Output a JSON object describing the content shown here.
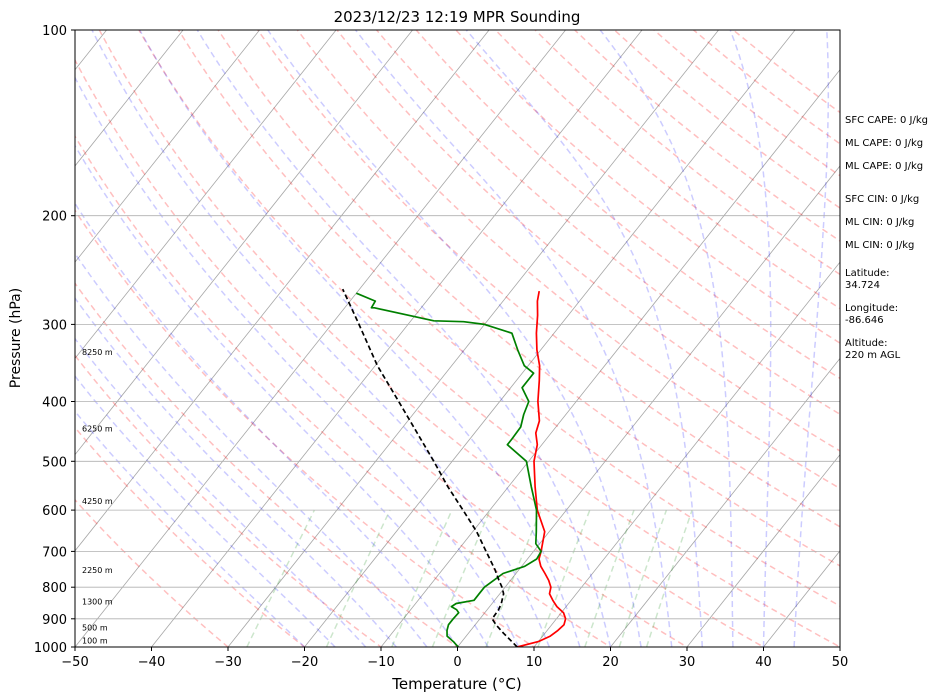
{
  "chart_data": {
    "type": "line",
    "title": "2023/12/23 12:19 MPR Sounding",
    "xlabel": "Temperature (°C)",
    "ylabel": "Pressure (hPa)",
    "xlim": [
      -50,
      50
    ],
    "ylim": [
      1000,
      100
    ],
    "y_scale": "log",
    "x_ticks": [
      "−50",
      "−40",
      "−30",
      "−20",
      "−10",
      "0",
      "10",
      "20",
      "30",
      "40",
      "50"
    ],
    "y_ticks": [
      "100",
      "200",
      "300",
      "400",
      "500",
      "600",
      "700",
      "800",
      "900",
      "1000"
    ],
    "height_labels": [
      "8250 m",
      "6250 m",
      "4250 m",
      "2250 m",
      "1300 m",
      "500 m",
      "100 m"
    ],
    "series": [
      {
        "color": "#ff0000",
        "pressure": [
          1000,
          980,
          960,
          940,
          920,
          900,
          880,
          860,
          840,
          820,
          800,
          780,
          760,
          740,
          720,
          700,
          650,
          600,
          550,
          500,
          470,
          450,
          430,
          400,
          370,
          350,
          330,
          310,
          290,
          275,
          265
        ],
        "temperature": [
          7.8,
          10,
          11,
          11.4,
          11.6,
          11.2,
          10.3,
          8.8,
          7.6,
          6.5,
          6,
          5,
          3.8,
          2.5,
          1.5,
          1,
          -0.6,
          -3.8,
          -6.5,
          -9.3,
          -10.6,
          -12,
          -12.8,
          -15,
          -17,
          -18.5,
          -20.5,
          -22.3,
          -24,
          -25.5,
          -26.3
        ]
      },
      {
        "color": "#008000",
        "pressure": [
          1000,
          990,
          980,
          960,
          940,
          920,
          900,
          880,
          870,
          860,
          850,
          840,
          820,
          800,
          780,
          760,
          740,
          720,
          700,
          680,
          650,
          600,
          550,
          500,
          470,
          460,
          440,
          420,
          400,
          380,
          360,
          350,
          330,
          310,
          300,
          297,
          296,
          282,
          282,
          275,
          267
        ],
        "temperature": [
          0.1,
          -0.5,
          -1.1,
          -2.5,
          -3.1,
          -3.5,
          -3.5,
          -3.4,
          -4,
          -5,
          -4.7,
          -2.7,
          -2.7,
          -2.7,
          -2.2,
          -1.7,
          0.4,
          1.2,
          1,
          -0.5,
          -1.7,
          -3.9,
          -7,
          -10.3,
          -14.5,
          -14.5,
          -14.6,
          -15.5,
          -16.2,
          -18.5,
          -18.5,
          -20.5,
          -23,
          -25.5,
          -30,
          -33,
          -37,
          -46.1,
          -46.5,
          -46.7,
          -50
        ]
      },
      {
        "color": "#000000",
        "pressure": [
          1000,
          970,
          950,
          920,
          900,
          870,
          850,
          820,
          800,
          780,
          750,
          700,
          650,
          600,
          550,
          500,
          450,
          400,
          350,
          300,
          263
        ],
        "temperature": [
          7.8,
          5.9,
          4.6,
          2.7,
          1.6,
          1.5,
          1.2,
          0.5,
          -0.4,
          -1.5,
          -3.1,
          -6.2,
          -9.5,
          -13.5,
          -17.9,
          -22.4,
          -27.5,
          -33.2,
          -39.7,
          -46.4,
          -52.2
        ]
      }
    ],
    "grid": true,
    "background_lines": [
      {
        "kind": "dry adiabats",
        "color": "#ff0000",
        "style": "dashed"
      },
      {
        "kind": "moist adiabats",
        "color": "#0000ff",
        "style": "dashed"
      },
      {
        "kind": "mixing ratio lines",
        "color": "#008000",
        "style": "dashed"
      },
      {
        "kind": "isotherms",
        "color": "#808080",
        "style": "solid"
      }
    ]
  },
  "info_panel": [
    {
      "label": "SFC CAPE: 0 J/kg"
    },
    {
      "label": "ML CAPE: 0 J/kg"
    },
    {
      "label": "ML CAPE: 0 J/kg"
    },
    {
      "label": "SFC CIN: 0 J/kg"
    },
    {
      "label": "ML CIN: 0 J/kg"
    },
    {
      "label": "ML CIN: 0 J/kg"
    },
    {
      "label": "Latitude:\n34.724"
    },
    {
      "label": "Longitude:\n-86.646"
    },
    {
      "label": "Altitude:\n220 m AGL"
    }
  ]
}
